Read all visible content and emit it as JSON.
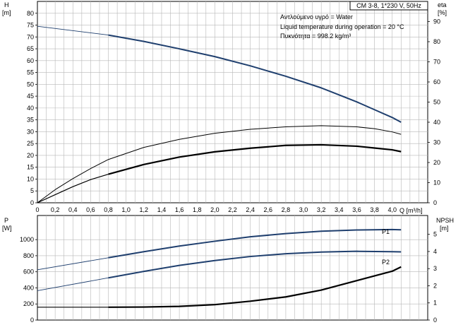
{
  "chart_data": [
    {
      "type": "line",
      "title": "",
      "header": "CM 3-8, 1*230 V, 50Hz",
      "annotations": [
        "Αντλούμενο υγρό = Water",
        "Liquid temperature during operation = 20 °C",
        "Πυκνότητα = 998.2 kg/m³"
      ],
      "xlabel": "Q [m³/h]",
      "ylabel": "H",
      "ylabel_unit": "[m]",
      "y2label": "eta",
      "y2label_unit": "[%]",
      "xlim": [
        0,
        4.4
      ],
      "ylim": [
        0,
        85
      ],
      "y2lim": [
        0,
        100
      ],
      "x_ticks": [
        "0",
        "0,2",
        "0,4",
        "0,6",
        "0,8",
        "1,0",
        "1,2",
        "1,4",
        "1,6",
        "1,8",
        "2,0",
        "2,2",
        "2,4",
        "2,6",
        "2,8",
        "3,0",
        "3,2",
        "3,4",
        "3,6",
        "3,8",
        "4,0"
      ],
      "y_ticks": [
        "0",
        "5",
        "10",
        "15",
        "20",
        "25",
        "30",
        "35",
        "40",
        "45",
        "50",
        "55",
        "60",
        "65",
        "70",
        "75",
        "80"
      ],
      "y2_ticks": [
        "0",
        "10",
        "20",
        "30",
        "40",
        "50",
        "60",
        "70",
        "80",
        "90"
      ],
      "grid": true,
      "series": [
        {
          "key": "head",
          "axis": "left",
          "color": "#1f3f6e",
          "x": [
            0,
            0.8,
            1.2,
            1.6,
            2.0,
            2.4,
            2.8,
            3.2,
            3.6,
            3.8,
            4.0,
            4.1
          ],
          "values": [
            74.5,
            70.8,
            68.1,
            65.0,
            61.7,
            57.8,
            53.4,
            48.5,
            42.6,
            39.3,
            36.0,
            34.0
          ],
          "operating_from": 0.8
        },
        {
          "key": "efficiency_thin",
          "axis": "right",
          "color": "#000000",
          "x": [
            0,
            0.2,
            0.4,
            0.6,
            0.8,
            1.2,
            1.6,
            2.0,
            2.4,
            2.8,
            3.2,
            3.6,
            3.8,
            4.0,
            4.1
          ],
          "values": [
            0,
            6.5,
            12,
            17,
            21.5,
            27.5,
            31.5,
            34.5,
            36.5,
            37.7,
            38.3,
            37.7,
            36.8,
            35.2,
            34.0
          ]
        },
        {
          "key": "efficiency_thick",
          "axis": "right",
          "color": "#000000",
          "x": [
            0,
            0.2,
            0.4,
            0.6,
            0.8,
            1.2,
            1.6,
            2.0,
            2.4,
            2.8,
            3.2,
            3.6,
            3.8,
            4.0,
            4.1
          ],
          "values": [
            0,
            4,
            8,
            11.5,
            14.2,
            19,
            22.7,
            25.3,
            27.1,
            28.5,
            28.8,
            28.1,
            27.2,
            26.3,
            25.4
          ],
          "operating_from": 0.8
        }
      ]
    },
    {
      "type": "line",
      "title": "",
      "xlabel": "",
      "ylabel": "P",
      "ylabel_unit": "[W]",
      "y2label": "NPSH",
      "y2label_unit": "[m]",
      "xlim": [
        0,
        4.4
      ],
      "ylim": [
        0,
        1300
      ],
      "y2lim": [
        0,
        6.1
      ],
      "y_ticks": [
        "0",
        "200",
        "400",
        "600",
        "800",
        "1000"
      ],
      "y2_ticks": [
        "0",
        "1",
        "2",
        "3",
        "4",
        "5"
      ],
      "grid": true,
      "series": [
        {
          "key": "p1",
          "name": "P1",
          "axis": "left",
          "color": "#1f3f6e",
          "x": [
            0,
            0.8,
            1.2,
            1.6,
            2.0,
            2.4,
            2.8,
            3.2,
            3.6,
            4.0,
            4.1
          ],
          "values": [
            625,
            775,
            850,
            920,
            980,
            1035,
            1075,
            1105,
            1120,
            1125,
            1122
          ],
          "operating_from": 0.8
        },
        {
          "key": "p2",
          "name": "P2",
          "axis": "left",
          "color": "#1f3f6e",
          "x": [
            0,
            0.8,
            1.2,
            1.6,
            2.0,
            2.4,
            2.8,
            3.2,
            3.6,
            4.0,
            4.1
          ],
          "values": [
            365,
            525,
            605,
            680,
            740,
            790,
            825,
            845,
            855,
            850,
            848
          ],
          "operating_from": 0.8
        },
        {
          "key": "npsh",
          "axis": "right",
          "color": "#000000",
          "x": [
            0,
            0.8,
            1.2,
            1.6,
            2.0,
            2.4,
            2.8,
            3.2,
            3.6,
            4.0,
            4.1
          ],
          "values": [
            0.75,
            0.75,
            0.76,
            0.8,
            0.9,
            1.1,
            1.35,
            1.75,
            2.3,
            2.85,
            3.1
          ],
          "operating_from": 0.8
        }
      ]
    }
  ]
}
